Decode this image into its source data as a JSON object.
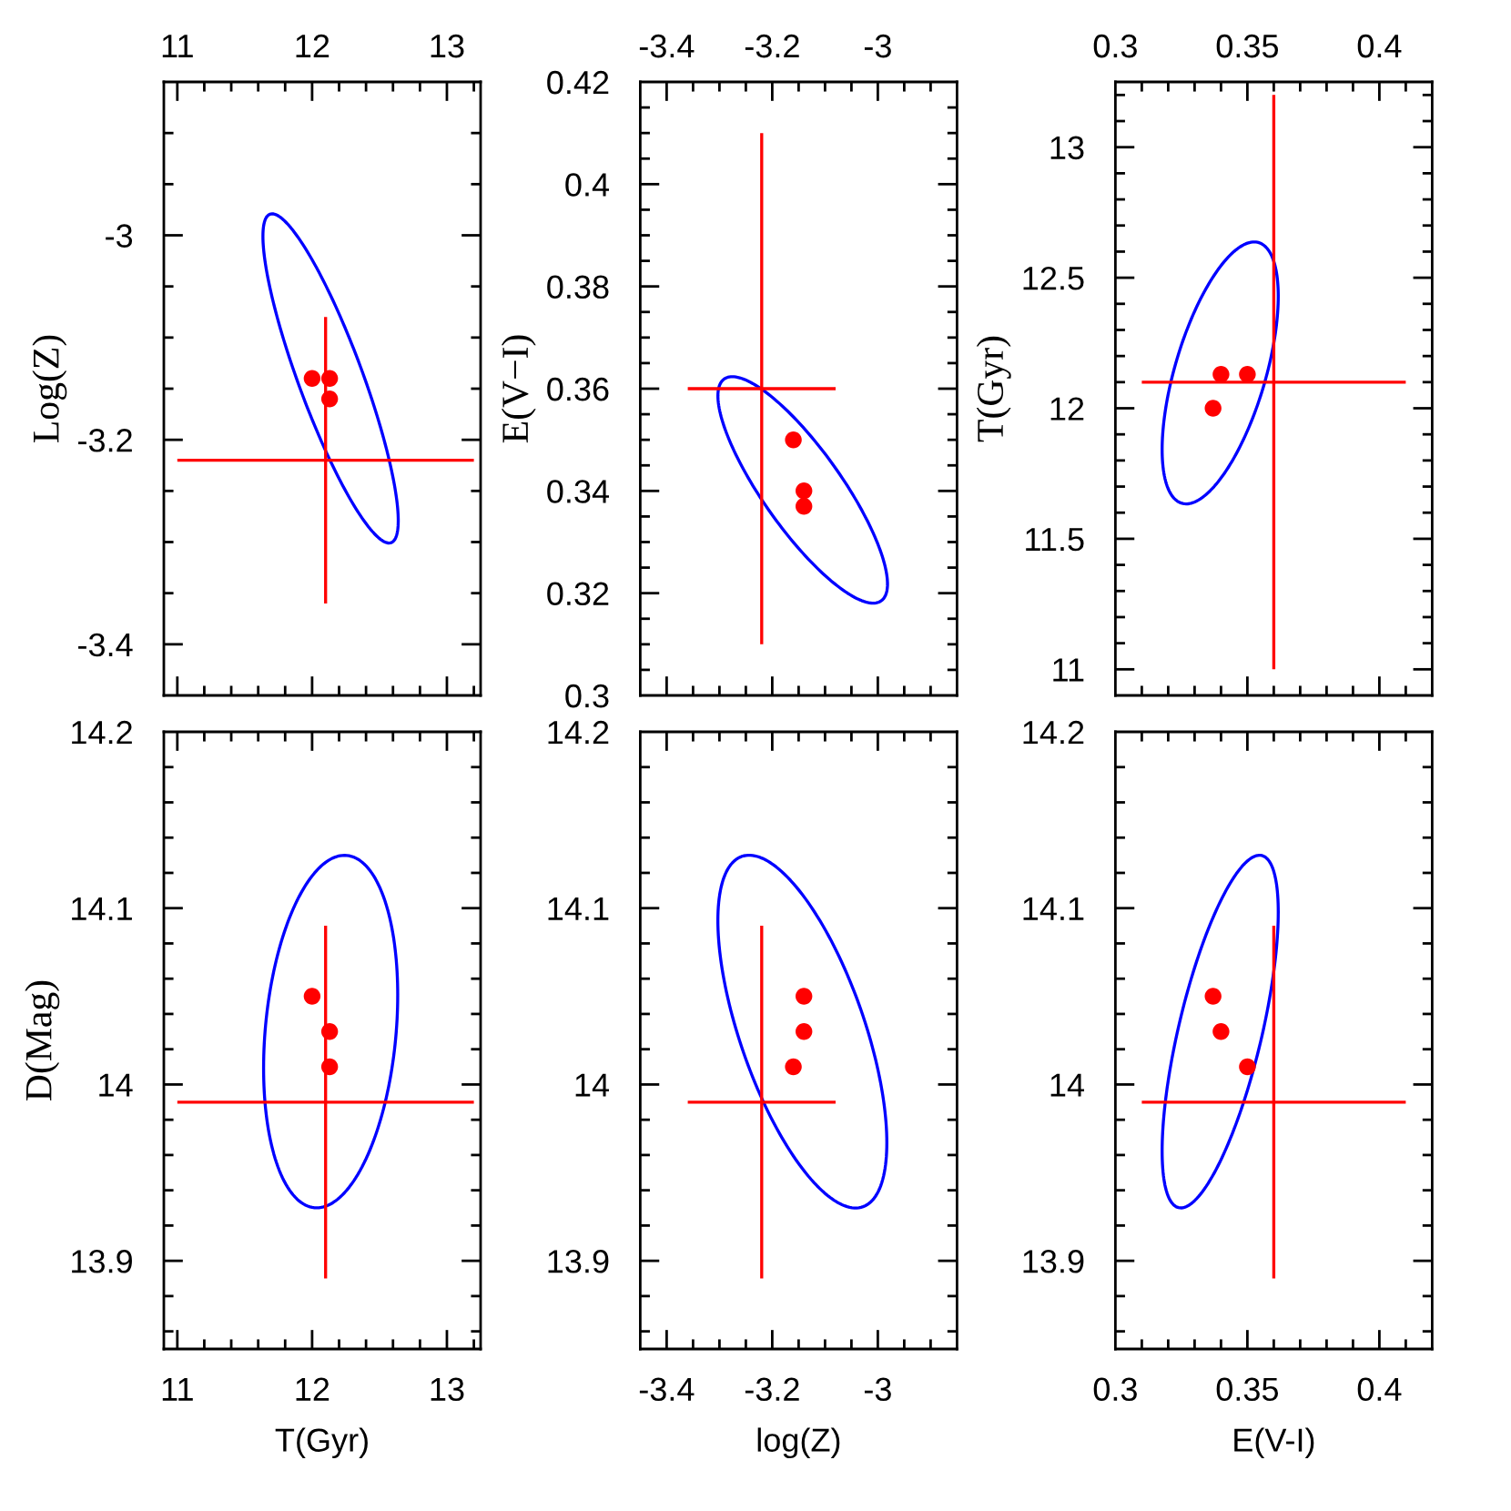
{
  "chart_data": [
    {
      "type": "scatter",
      "ylabel": "Log(Z)",
      "xlim": [
        10.9,
        13.25
      ],
      "xticks": [
        11,
        {
          "value": 11.2,
          "label": null
        },
        {
          "value": 11.4,
          "label": null
        },
        {
          "value": 11.6,
          "label": null
        },
        {
          "value": 11.8,
          "label": null
        },
        12,
        {
          "value": 12.2,
          "label": null
        },
        {
          "value": 12.4,
          "label": null
        },
        {
          "value": 12.6,
          "label": null
        },
        {
          "value": 12.8,
          "label": null
        },
        13,
        {
          "value": 13.2,
          "label": null
        }
      ],
      "ylim": [
        -3.45,
        -2.85
      ],
      "yticks": [
        -3.4,
        {
          "value": -3.35,
          "label": null
        },
        {
          "value": -3.3,
          "label": null
        },
        {
          "value": -3.25,
          "label": null
        },
        -3.2,
        {
          "value": -3.15,
          "label": null
        },
        {
          "value": -3.1,
          "label": null
        },
        {
          "value": -3.05,
          "label": null
        },
        -3,
        {
          "value": -2.95,
          "label": null
        },
        {
          "value": -2.9,
          "label": null
        }
      ],
      "series": [
        {
          "type": "line",
          "color": "#ff0000",
          "x": [
            11.0,
            13.2
          ],
          "values": [
            -3.22,
            -3.22
          ]
        },
        {
          "type": "line",
          "color": "#ff0000",
          "x": [
            12.1,
            12.1
          ],
          "values": [
            -3.36,
            -3.08
          ]
        },
        {
          "color": "#ff0000",
          "marker": "circle",
          "x": [
            12.0,
            12.13,
            12.13
          ],
          "values": [
            -3.14,
            -3.14,
            -3.16
          ]
        }
      ]
    },
    {
      "type": "scatter",
      "ylabel": "E(V−I)",
      "xlim": [
        -3.45,
        -2.85
      ],
      "xticks": [
        -3.4,
        {
          "value": -3.35,
          "label": null
        },
        {
          "value": -3.3,
          "label": null
        },
        {
          "value": -3.25,
          "label": null
        },
        -3.2,
        {
          "value": -3.15,
          "label": null
        },
        {
          "value": -3.1,
          "label": null
        },
        {
          "value": -3.05,
          "label": null
        },
        -3,
        {
          "value": -2.95,
          "label": null
        },
        {
          "value": -2.9,
          "label": null
        }
      ],
      "ylim": [
        0.3,
        0.42
      ],
      "yticks": [
        0.3,
        {
          "value": 0.305,
          "label": null
        },
        {
          "value": 0.31,
          "label": null
        },
        {
          "value": 0.315,
          "label": null
        },
        0.32,
        {
          "value": 0.325,
          "label": null
        },
        {
          "value": 0.33,
          "label": null
        },
        {
          "value": 0.335,
          "label": null
        },
        0.34,
        {
          "value": 0.345,
          "label": null
        },
        {
          "value": 0.35,
          "label": null
        },
        {
          "value": 0.355,
          "label": null
        },
        0.36,
        {
          "value": 0.365,
          "label": null
        },
        {
          "value": 0.37,
          "label": null
        },
        {
          "value": 0.375,
          "label": null
        },
        0.38,
        {
          "value": 0.385,
          "label": null
        },
        {
          "value": 0.39,
          "label": null
        },
        {
          "value": 0.395,
          "label": null
        },
        0.4,
        {
          "value": 0.405,
          "label": null
        },
        {
          "value": 0.41,
          "label": null
        },
        {
          "value": 0.415,
          "label": null
        },
        0.42
      ],
      "series": [
        {
          "type": "line",
          "color": "#ff0000",
          "x": [
            -3.36,
            -3.08
          ],
          "values": [
            0.36,
            0.36
          ]
        },
        {
          "type": "line",
          "color": "#ff0000",
          "x": [
            -3.22,
            -3.22
          ],
          "values": [
            0.31,
            0.41
          ]
        },
        {
          "color": "#ff0000",
          "marker": "circle",
          "x": [
            -3.14,
            -3.14,
            -3.16
          ],
          "values": [
            0.337,
            0.34,
            0.35
          ]
        }
      ]
    },
    {
      "type": "scatter",
      "ylabel": "T(Gyr)",
      "xlim": [
        0.3,
        0.42
      ],
      "xticks": [
        0.3,
        {
          "value": 0.31,
          "label": null
        },
        {
          "value": 0.32,
          "label": null
        },
        {
          "value": 0.33,
          "label": null
        },
        {
          "value": 0.34,
          "label": null
        },
        0.35,
        {
          "value": 0.36,
          "label": null
        },
        {
          "value": 0.37,
          "label": null
        },
        {
          "value": 0.38,
          "label": null
        },
        {
          "value": 0.39,
          "label": null
        },
        0.4,
        {
          "value": 0.41,
          "label": null
        }
      ],
      "ylim": [
        10.9,
        13.25
      ],
      "yticks": [
        11,
        {
          "value": 11.1,
          "label": null
        },
        {
          "value": 11.2,
          "label": null
        },
        {
          "value": 11.3,
          "label": null
        },
        {
          "value": 11.4,
          "label": null
        },
        11.5,
        {
          "value": 11.6,
          "label": null
        },
        {
          "value": 11.7,
          "label": null
        },
        {
          "value": 11.8,
          "label": null
        },
        {
          "value": 11.9,
          "label": null
        },
        12,
        {
          "value": 12.1,
          "label": null
        },
        {
          "value": 12.2,
          "label": null
        },
        {
          "value": 12.3,
          "label": null
        },
        {
          "value": 12.4,
          "label": null
        },
        12.5,
        {
          "value": 12.6,
          "label": null
        },
        {
          "value": 12.7,
          "label": null
        },
        {
          "value": 12.8,
          "label": null
        },
        {
          "value": 12.9,
          "label": null
        },
        13,
        {
          "value": 13.1,
          "label": null
        },
        {
          "value": 13.2,
          "label": null
        }
      ],
      "series": [
        {
          "type": "line",
          "color": "#ff0000",
          "x": [
            0.31,
            0.41
          ],
          "values": [
            12.1,
            12.1
          ]
        },
        {
          "type": "line",
          "color": "#ff0000",
          "x": [
            0.36,
            0.36
          ],
          "values": [
            11.0,
            13.2
          ]
        },
        {
          "color": "#ff0000",
          "marker": "circle",
          "x": [
            0.337,
            0.34,
            0.35
          ],
          "values": [
            12.0,
            12.13,
            12.13
          ]
        }
      ]
    },
    {
      "type": "scatter",
      "xlabel": "T(Gyr)",
      "ylabel": "D(Mag)",
      "xlim": [
        10.9,
        13.25
      ],
      "xticks": [
        11,
        {
          "value": 11.2,
          "label": null
        },
        {
          "value": 11.4,
          "label": null
        },
        {
          "value": 11.6,
          "label": null
        },
        {
          "value": 11.8,
          "label": null
        },
        12,
        {
          "value": 12.2,
          "label": null
        },
        {
          "value": 12.4,
          "label": null
        },
        {
          "value": 12.6,
          "label": null
        },
        {
          "value": 12.8,
          "label": null
        },
        13,
        {
          "value": 13.2,
          "label": null
        }
      ],
      "ylim": [
        13.85,
        14.2
      ],
      "yticks": [
        {
          "value": 13.86,
          "label": null
        },
        {
          "value": 13.88,
          "label": null
        },
        13.9,
        {
          "value": 13.92,
          "label": null
        },
        {
          "value": 13.94,
          "label": null
        },
        {
          "value": 13.96,
          "label": null
        },
        {
          "value": 13.98,
          "label": null
        },
        14,
        {
          "value": 14.02,
          "label": null
        },
        {
          "value": 14.04,
          "label": null
        },
        {
          "value": 14.06,
          "label": null
        },
        {
          "value": 14.08,
          "label": null
        },
        14.1,
        {
          "value": 14.12,
          "label": null
        },
        {
          "value": 14.14,
          "label": null
        },
        {
          "value": 14.16,
          "label": null
        },
        {
          "value": 14.18,
          "label": null
        },
        14.2
      ],
      "series": [
        {
          "type": "line",
          "color": "#ff0000",
          "x": [
            11.0,
            13.2
          ],
          "values": [
            13.99,
            13.99
          ]
        },
        {
          "type": "line",
          "color": "#ff0000",
          "x": [
            12.1,
            12.1
          ],
          "values": [
            13.89,
            14.09
          ]
        },
        {
          "color": "#ff0000",
          "marker": "circle",
          "x": [
            12.0,
            12.13,
            12.13
          ],
          "values": [
            14.05,
            14.03,
            14.01
          ]
        }
      ]
    },
    {
      "type": "scatter",
      "xlabel": "log(Z)",
      "xlim": [
        -3.45,
        -2.85
      ],
      "xticks": [
        -3.4,
        {
          "value": -3.35,
          "label": null
        },
        {
          "value": -3.3,
          "label": null
        },
        {
          "value": -3.25,
          "label": null
        },
        -3.2,
        {
          "value": -3.15,
          "label": null
        },
        {
          "value": -3.1,
          "label": null
        },
        {
          "value": -3.05,
          "label": null
        },
        -3,
        {
          "value": -2.95,
          "label": null
        },
        {
          "value": -2.9,
          "label": null
        }
      ],
      "ylim": [
        13.85,
        14.2
      ],
      "yticks": [
        {
          "value": 13.86,
          "label": null
        },
        {
          "value": 13.88,
          "label": null
        },
        13.9,
        {
          "value": 13.92,
          "label": null
        },
        {
          "value": 13.94,
          "label": null
        },
        {
          "value": 13.96,
          "label": null
        },
        {
          "value": 13.98,
          "label": null
        },
        14,
        {
          "value": 14.02,
          "label": null
        },
        {
          "value": 14.04,
          "label": null
        },
        {
          "value": 14.06,
          "label": null
        },
        {
          "value": 14.08,
          "label": null
        },
        14.1,
        {
          "value": 14.12,
          "label": null
        },
        {
          "value": 14.14,
          "label": null
        },
        {
          "value": 14.16,
          "label": null
        },
        {
          "value": 14.18,
          "label": null
        },
        14.2
      ],
      "series": [
        {
          "type": "line",
          "color": "#ff0000",
          "x": [
            -3.36,
            -3.08
          ],
          "values": [
            13.99,
            13.99
          ]
        },
        {
          "type": "line",
          "color": "#ff0000",
          "x": [
            -3.22,
            -3.22
          ],
          "values": [
            13.89,
            14.09
          ]
        },
        {
          "color": "#ff0000",
          "marker": "circle",
          "x": [
            -3.14,
            -3.14,
            -3.16
          ],
          "values": [
            14.05,
            14.03,
            14.01
          ]
        }
      ]
    },
    {
      "type": "scatter",
      "xlabel": "E(V-I)",
      "xlim": [
        0.3,
        0.42
      ],
      "xticks": [
        0.3,
        {
          "value": 0.31,
          "label": null
        },
        {
          "value": 0.32,
          "label": null
        },
        {
          "value": 0.33,
          "label": null
        },
        {
          "value": 0.34,
          "label": null
        },
        0.35,
        {
          "value": 0.36,
          "label": null
        },
        {
          "value": 0.37,
          "label": null
        },
        {
          "value": 0.38,
          "label": null
        },
        {
          "value": 0.39,
          "label": null
        },
        0.4,
        {
          "value": 0.41,
          "label": null
        }
      ],
      "ylim": [
        13.85,
        14.2
      ],
      "yticks": [
        {
          "value": 13.86,
          "label": null
        },
        {
          "value": 13.88,
          "label": null
        },
        13.9,
        {
          "value": 13.92,
          "label": null
        },
        {
          "value": 13.94,
          "label": null
        },
        {
          "value": 13.96,
          "label": null
        },
        {
          "value": 13.98,
          "label": null
        },
        14,
        {
          "value": 14.02,
          "label": null
        },
        {
          "value": 14.04,
          "label": null
        },
        {
          "value": 14.06,
          "label": null
        },
        {
          "value": 14.08,
          "label": null
        },
        14.1,
        {
          "value": 14.12,
          "label": null
        },
        {
          "value": 14.14,
          "label": null
        },
        {
          "value": 14.16,
          "label": null
        },
        {
          "value": 14.18,
          "label": null
        },
        14.2
      ],
      "series": [
        {
          "type": "line",
          "color": "#ff0000",
          "x": [
            0.31,
            0.41
          ],
          "values": [
            13.99,
            13.99
          ]
        },
        {
          "type": "line",
          "color": "#ff0000",
          "x": [
            0.36,
            0.36
          ],
          "values": [
            13.89,
            14.09
          ]
        },
        {
          "color": "#ff0000",
          "marker": "circle",
          "x": [
            0.337,
            0.34,
            0.35
          ],
          "values": [
            14.05,
            14.03,
            14.01
          ]
        }
      ]
    }
  ]
}
